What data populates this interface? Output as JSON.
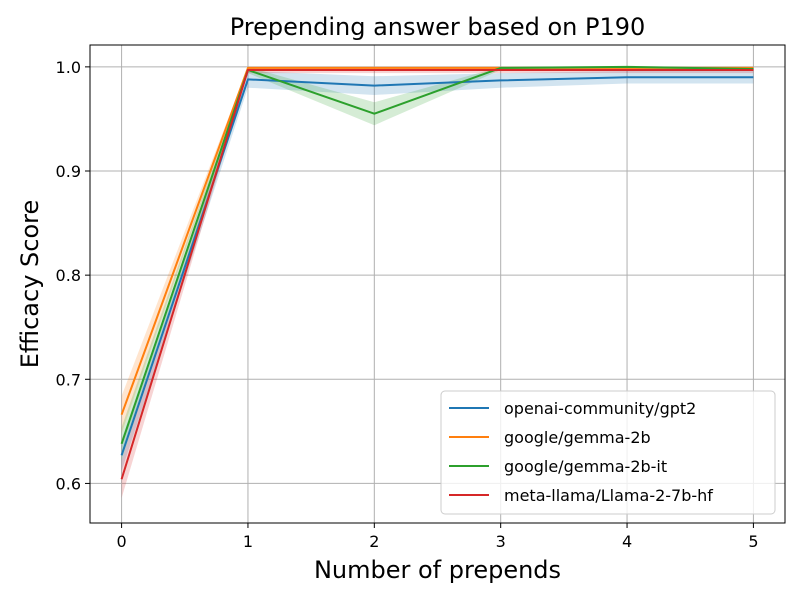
{
  "chart_data": {
    "type": "line",
    "title": "Prepending answer based on P190",
    "xlabel": "Number of prepends",
    "ylabel": "Efficacy Score",
    "x": [
      0,
      1,
      2,
      3,
      4,
      5
    ],
    "xlim": [
      -0.25,
      5.25
    ],
    "ylim": [
      0.562,
      1.021
    ],
    "xticks": [
      0,
      1,
      2,
      3,
      4,
      5
    ],
    "yticks": [
      0.6,
      0.7,
      0.8,
      0.9,
      1.0
    ],
    "ytick_labels": [
      "0.6",
      "0.7",
      "0.8",
      "0.9",
      "1.0"
    ],
    "grid": true,
    "legend_position": "lower-right",
    "series": [
      {
        "name": "openai-community/gpt2",
        "color": "#1f77b4",
        "values": [
          0.627,
          0.988,
          0.982,
          0.987,
          0.99,
          0.99
        ],
        "lower": [
          0.612,
          0.98,
          0.973,
          0.98,
          0.984,
          0.984
        ],
        "upper": [
          0.642,
          0.996,
          0.991,
          0.994,
          0.996,
          0.996
        ]
      },
      {
        "name": "google/gemma-2b",
        "color": "#ff7f0e",
        "values": [
          0.666,
          0.999,
          0.999,
          0.999,
          0.999,
          0.999
        ],
        "lower": [
          0.648,
          0.997,
          0.997,
          0.997,
          0.997,
          0.997
        ],
        "upper": [
          0.684,
          1.0,
          1.0,
          1.0,
          1.0,
          1.0
        ]
      },
      {
        "name": "google/gemma-2b-it",
        "color": "#2ca02c",
        "values": [
          0.638,
          0.997,
          0.955,
          0.999,
          1.0,
          0.998
        ],
        "lower": [
          0.622,
          0.994,
          0.944,
          0.997,
          0.999,
          0.996
        ],
        "upper": [
          0.654,
          1.0,
          0.966,
          1.0,
          1.0,
          1.0
        ]
      },
      {
        "name": "meta-llama/Llama-2-7b-hf",
        "color": "#d62728",
        "values": [
          0.604,
          0.997,
          0.997,
          0.997,
          0.997,
          0.997
        ],
        "lower": [
          0.586,
          0.994,
          0.994,
          0.994,
          0.994,
          0.994
        ],
        "upper": [
          0.622,
          1.0,
          1.0,
          1.0,
          1.0,
          1.0
        ]
      }
    ]
  }
}
